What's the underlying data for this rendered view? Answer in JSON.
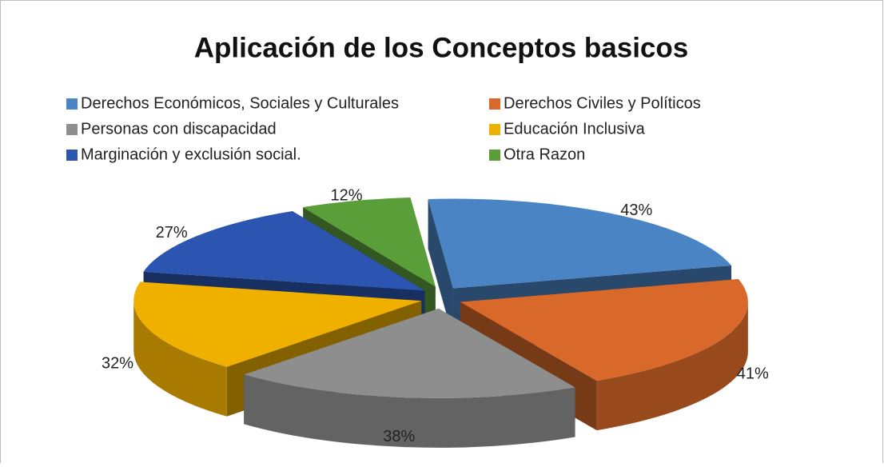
{
  "chart_data": {
    "type": "pie3d",
    "title": "Aplicación de los Conceptos basicos",
    "categories": [
      "Derechos Económicos, Sociales y Culturales",
      "Derechos Civiles y Políticos",
      "Personas con discapacidad",
      "Educación Inclusiva",
      "Marginación y exclusión social.",
      "Otra Razon"
    ],
    "values": [
      43,
      41,
      38,
      32,
      27,
      12
    ],
    "value_labels": [
      "43%",
      "41%",
      "38%",
      "32%",
      "27%",
      "12%"
    ],
    "colors": [
      "#4a84c4",
      "#d9692a",
      "#8e8e8e",
      "#f0b000",
      "#2b55b0",
      "#5a9e3a"
    ],
    "legend": "top"
  }
}
